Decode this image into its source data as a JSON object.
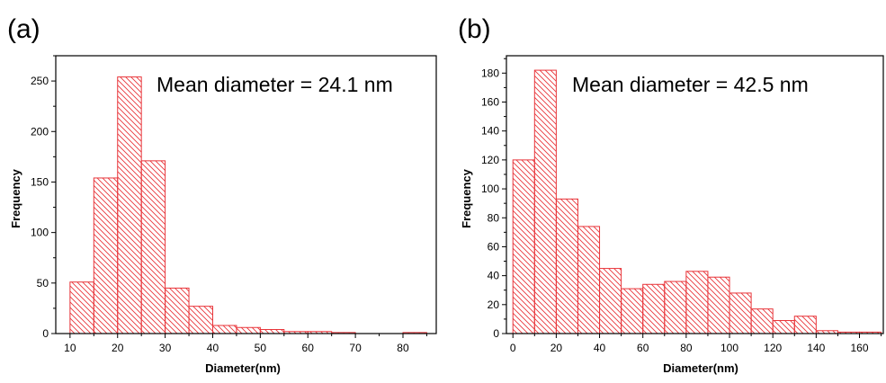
{
  "chart_data": [
    {
      "type": "bar",
      "panel_label": "(a)",
      "annotation": "Mean diameter = 24.1 nm",
      "xlabel": "Diameter(nm)",
      "ylabel": "Frequency",
      "xlim": [
        7,
        87
      ],
      "ylim": [
        0,
        275
      ],
      "xticks": [
        10,
        20,
        30,
        40,
        50,
        60,
        70,
        80
      ],
      "yticks": [
        0,
        50,
        100,
        150,
        200,
        250
      ],
      "bin_width": 5,
      "bins": [
        10,
        15,
        20,
        25,
        30,
        35,
        40,
        45,
        50,
        55,
        60,
        65,
        70,
        75,
        80
      ],
      "values": [
        51,
        154,
        254,
        171,
        45,
        27,
        8,
        6,
        4,
        2,
        2,
        1,
        0,
        0,
        1
      ],
      "bar_color": "#e8353a",
      "grid": false
    },
    {
      "type": "bar",
      "panel_label": "(b)",
      "annotation": "Mean diameter = 42.5 nm",
      "xlabel": "Diameter(nm)",
      "ylabel": "Frequency",
      "xlim": [
        -3,
        171
      ],
      "ylim": [
        0,
        192
      ],
      "xticks": [
        0,
        20,
        40,
        60,
        80,
        100,
        120,
        140,
        160
      ],
      "yticks": [
        0,
        20,
        40,
        60,
        80,
        100,
        120,
        140,
        160,
        180
      ],
      "bin_width": 10,
      "bins": [
        0,
        10,
        20,
        30,
        40,
        50,
        60,
        70,
        80,
        90,
        100,
        110,
        120,
        130,
        140,
        150,
        160
      ],
      "values": [
        120,
        182,
        93,
        74,
        45,
        31,
        34,
        36,
        43,
        39,
        28,
        17,
        9,
        12,
        2,
        1,
        1
      ],
      "bar_color": "#e8353a",
      "grid": false
    }
  ]
}
